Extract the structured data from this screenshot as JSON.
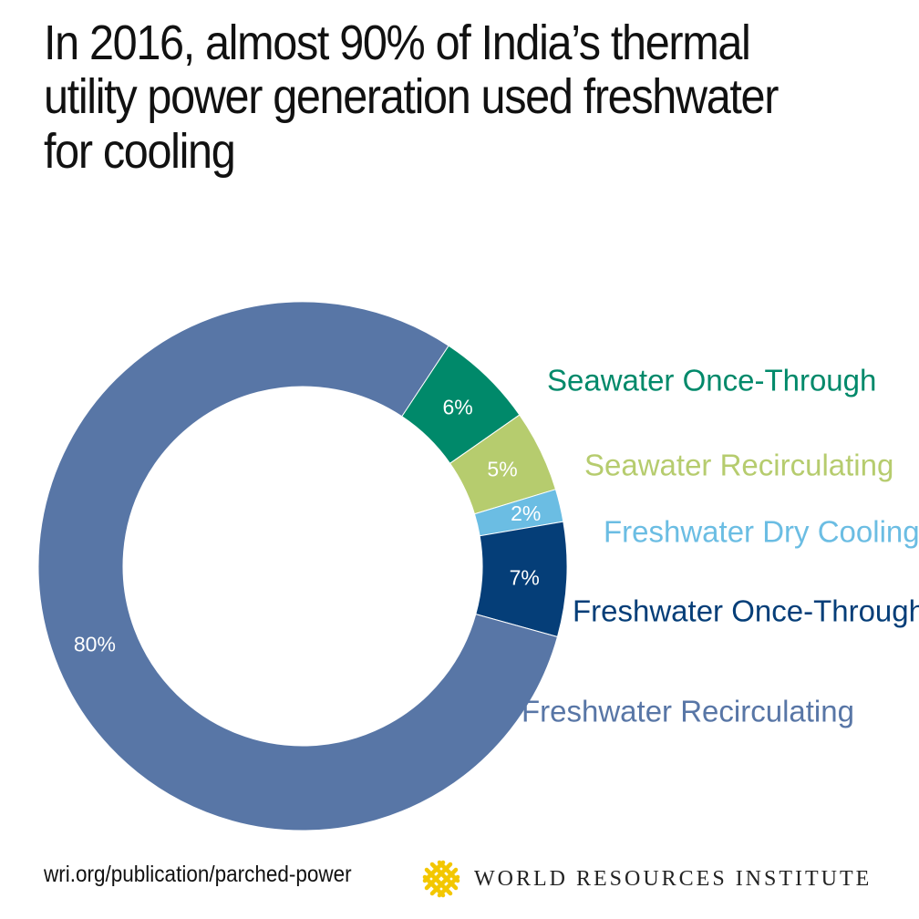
{
  "title": "In 2016, almost 90% of India’s thermal utility power generation used freshwater for cooling",
  "footer": {
    "source": "wri.org/publication/parched-power",
    "brand": "WORLD RESOURCES INSTITUTE",
    "logo_color": "#f3c700"
  },
  "chart_data": {
    "type": "pie",
    "style": "donut",
    "categories": [
      "Seawater Once-Through",
      "Seawater Recirculating",
      "Freshwater Dry Cooling",
      "Freshwater Once-Through",
      "Freshwater Recirculating"
    ],
    "values": [
      6,
      5,
      2,
      7,
      80
    ],
    "value_labels": [
      "6%",
      "5%",
      "2%",
      "7%",
      "80%"
    ],
    "colors": [
      "#00896a",
      "#b6cc6e",
      "#6bbde3",
      "#053e78",
      "#5876a6"
    ],
    "legend_placement": "right"
  }
}
